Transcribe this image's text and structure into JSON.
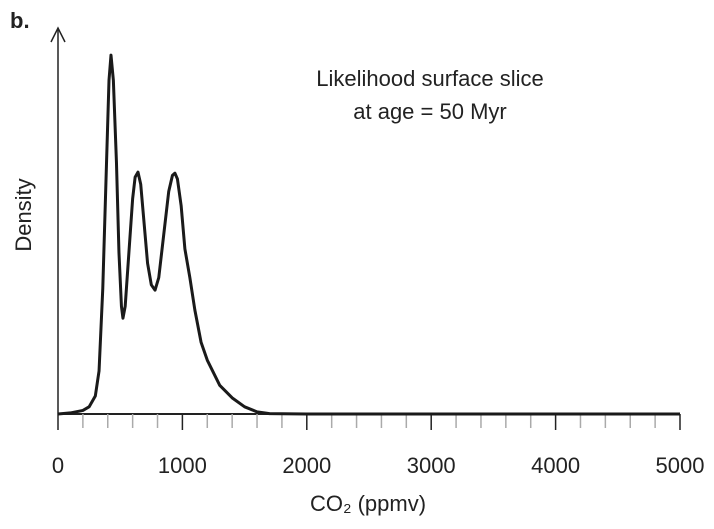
{
  "chart_data": {
    "type": "line",
    "panel_label": "b.",
    "annotation": [
      "Likelihood surface slice",
      "at age = 50 Myr"
    ],
    "ylabel": "Density",
    "xlabel": "CO₂ (ppmv)",
    "x": [
      0,
      100,
      200,
      250,
      300,
      330,
      360,
      390,
      410,
      426,
      445,
      470,
      490,
      510,
      522,
      540,
      570,
      600,
      620,
      643,
      665,
      690,
      720,
      750,
      780,
      810,
      850,
      890,
      920,
      940,
      960,
      990,
      1020,
      1060,
      1100,
      1150,
      1200,
      1300,
      1400,
      1500,
      1600,
      1700,
      2000,
      5000
    ],
    "series": [
      {
        "color": "#1a1a1a",
        "values": [
          0,
          0.003,
          0.01,
          0.02,
          0.05,
          0.12,
          0.35,
          0.7,
          0.93,
          1.0,
          0.93,
          0.7,
          0.45,
          0.3,
          0.267,
          0.3,
          0.45,
          0.6,
          0.66,
          0.674,
          0.64,
          0.54,
          0.42,
          0.36,
          0.345,
          0.38,
          0.5,
          0.62,
          0.665,
          0.671,
          0.655,
          0.58,
          0.46,
          0.38,
          0.29,
          0.2,
          0.15,
          0.08,
          0.045,
          0.02,
          0.006,
          0.001,
          0,
          0
        ]
      }
    ],
    "xlim": [
      0,
      5000
    ],
    "ylim": [
      0,
      1.07
    ],
    "xticks": [
      0,
      1000,
      2000,
      3000,
      4000,
      5000
    ],
    "xminorticks": [
      200,
      400,
      600,
      800,
      1200,
      1400,
      1600,
      1800,
      2200,
      2400,
      2600,
      2800,
      3200,
      3400,
      3600,
      3800,
      4200,
      4400,
      4600,
      4800
    ]
  }
}
